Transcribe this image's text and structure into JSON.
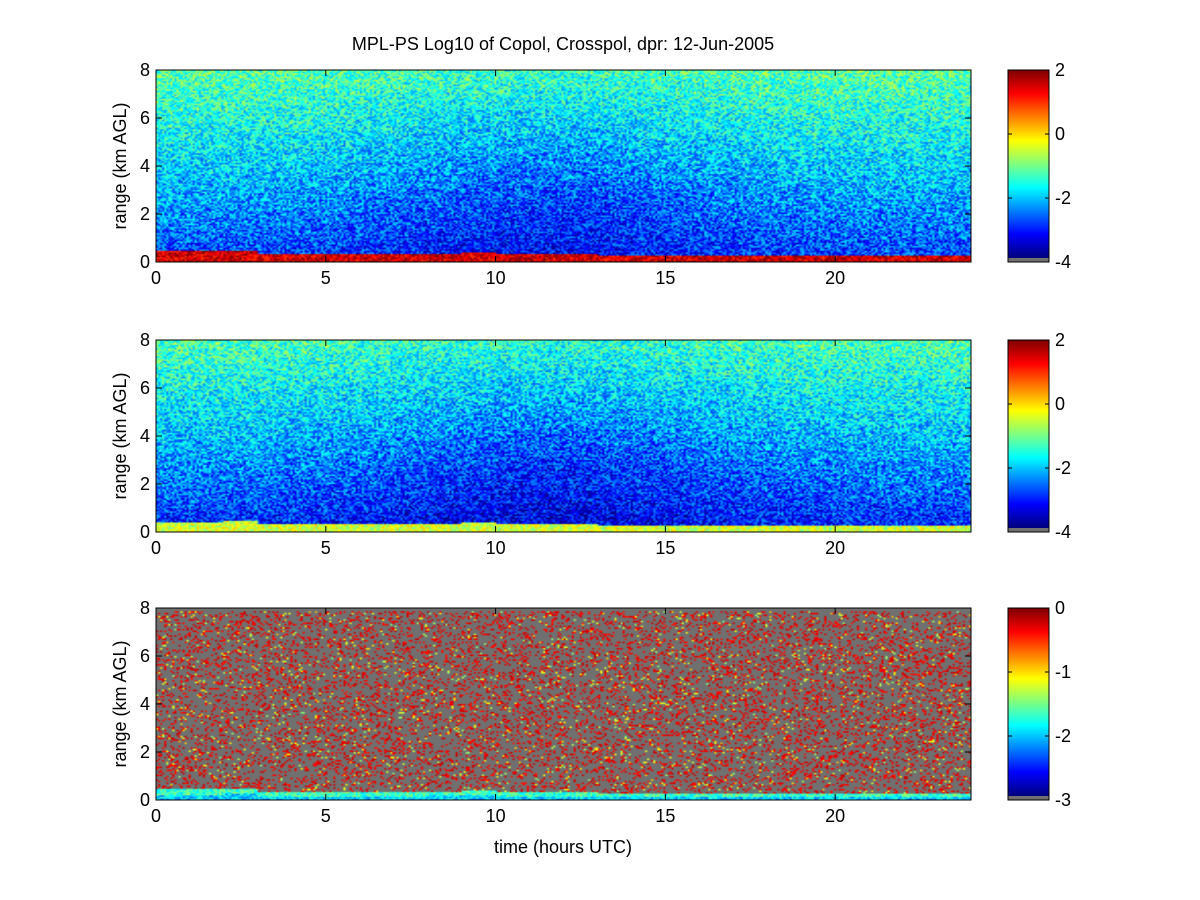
{
  "figure": {
    "title": "MPL-PS Log10 of Copol, Crosspol, dpr: 12-Jun-2005",
    "xlabel": "time (hours UTC)"
  },
  "colors": {
    "axis": "#000000",
    "background": "#ffffff",
    "nan_gray": "#707070",
    "jet_low": "#00008f",
    "jet_high": "#800000"
  },
  "chart_data": [
    {
      "type": "heatmap",
      "panel": "top",
      "title": "MPL-PS Log10 of Copol, Crosspol, dpr: 12-Jun-2005",
      "xlabel": "",
      "ylabel": "range (km AGL)",
      "xlim": [
        0,
        24
      ],
      "ylim": [
        0,
        8
      ],
      "x_ticks": [
        0,
        5,
        10,
        15,
        20
      ],
      "y_ticks": [
        0,
        2,
        4,
        6,
        8
      ],
      "colorbar": {
        "clim": [
          -4,
          2
        ],
        "ticks": [
          -4,
          -2,
          0,
          2
        ],
        "colormap": "jet"
      },
      "surface_layer_top_km": [
        0.45,
        0.45,
        0.5,
        0.3,
        0.3,
        0.3,
        0.3,
        0.3,
        0.35,
        0.4,
        0.3,
        0.3,
        0.3,
        0.25,
        0.25,
        0.25,
        0.25,
        0.25,
        0.25,
        0.25,
        0.25,
        0.25,
        0.25,
        0.25,
        0.25
      ],
      "field_description_values": {
        "surface": 1.5,
        "boundary_layer": -3.0,
        "mid_level": -2.0,
        "upper": -1.2
      }
    },
    {
      "type": "heatmap",
      "panel": "middle",
      "xlabel": "",
      "ylabel": "range (km AGL)",
      "xlim": [
        0,
        24
      ],
      "ylim": [
        0,
        8
      ],
      "x_ticks": [
        0,
        5,
        10,
        15,
        20
      ],
      "y_ticks": [
        0,
        2,
        4,
        6,
        8
      ],
      "colorbar": {
        "clim": [
          -4,
          2
        ],
        "ticks": [
          -4,
          -2,
          0,
          2
        ],
        "colormap": "jet"
      },
      "surface_layer_top_km": [
        0.4,
        0.4,
        0.45,
        0.3,
        0.3,
        0.3,
        0.3,
        0.3,
        0.35,
        0.4,
        0.3,
        0.3,
        0.3,
        0.25,
        0.25,
        0.25,
        0.25,
        0.25,
        0.25,
        0.25,
        0.25,
        0.25,
        0.25,
        0.25,
        0.25
      ],
      "field_description_values": {
        "surface": -0.5,
        "boundary_layer": -3.2,
        "mid_level": -2.2,
        "upper": -1.3
      }
    },
    {
      "type": "heatmap",
      "panel": "bottom",
      "xlabel": "time (hours UTC)",
      "ylabel": "range (km AGL)",
      "xlim": [
        0,
        24
      ],
      "ylim": [
        0,
        8
      ],
      "x_ticks": [
        0,
        5,
        10,
        15,
        20
      ],
      "y_ticks": [
        0,
        2,
        4,
        6,
        8
      ],
      "colorbar": {
        "clim": [
          -3,
          0
        ],
        "ticks": [
          -3,
          -2,
          -1,
          0
        ],
        "colormap": "jet"
      },
      "surface_layer_top_km": [
        0.45,
        0.45,
        0.5,
        0.3,
        0.3,
        0.3,
        0.3,
        0.3,
        0.35,
        0.4,
        0.3,
        0.3,
        0.3,
        0.25,
        0.25,
        0.25,
        0.25,
        0.25,
        0.25,
        0.25,
        0.25,
        0.25,
        0.25,
        0.25,
        0.25
      ],
      "field_description_values": {
        "surface": -1.7,
        "aloft_valid": -0.2,
        "aloft_missing_fraction": 0.75
      }
    }
  ]
}
